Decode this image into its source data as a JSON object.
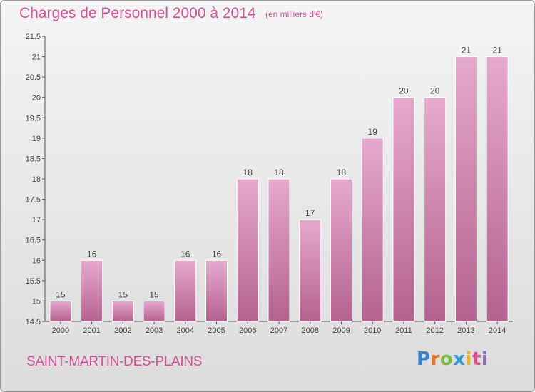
{
  "title": "Charges de Personnel 2000 à 2014",
  "subtitle": "(en milliers d'€)",
  "commune": "SAINT-MARTIN-DES-PLAINS",
  "logo": "Proxiti",
  "colors": {
    "title": "#d45296",
    "bar_top": "#e6a9cd",
    "bar_bottom": "#b4628f",
    "background": "#eeeeee"
  },
  "chart_data": {
    "type": "bar",
    "title": "Charges de Personnel 2000 à 2014",
    "subtitle": "(en milliers d'€)",
    "categories": [
      "2000",
      "2001",
      "2002",
      "2003",
      "2004",
      "2005",
      "2006",
      "2007",
      "2008",
      "2009",
      "2010",
      "2011",
      "2012",
      "2013",
      "2014"
    ],
    "values": [
      15,
      16,
      15,
      15,
      16,
      16,
      18,
      18,
      17,
      18,
      19,
      20,
      20,
      21,
      21
    ],
    "value_labels": [
      "15",
      "16",
      "15",
      "15",
      "16",
      "16",
      "18",
      "18",
      "17",
      "18",
      "19",
      "20",
      "20",
      "21",
      "21"
    ],
    "ylim": [
      14.5,
      21.5
    ],
    "yticks": [
      "14.5",
      "15",
      "15.5",
      "16",
      "16.5",
      "17",
      "17.5",
      "18",
      "18.5",
      "19",
      "19.5",
      "20",
      "20.5",
      "21",
      "21.5"
    ],
    "grid": false,
    "xlabel": "",
    "ylabel": ""
  }
}
